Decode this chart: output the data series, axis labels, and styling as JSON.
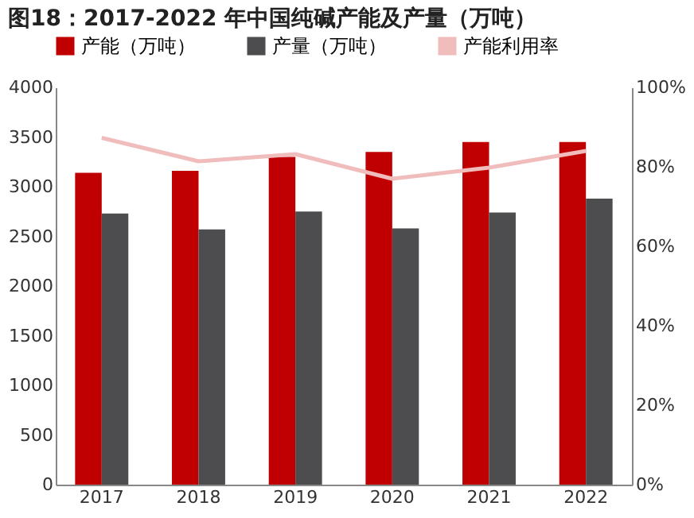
{
  "chart_data": {
    "type": "bar",
    "title": "图18：2017-2022 年中国纯碱产能及产量（万吨）",
    "categories": [
      "2017",
      "2018",
      "2019",
      "2020",
      "2021",
      "2022"
    ],
    "series": [
      {
        "name": "产能（万吨）",
        "color": "#c00000",
        "values": [
          3140,
          3160,
          3300,
          3350,
          3450,
          3450
        ]
      },
      {
        "name": "产量（万吨）",
        "color": "#4d4d4f",
        "values": [
          2730,
          2570,
          2750,
          2580,
          2740,
          2880
        ]
      },
      {
        "name": "产能利用率",
        "type": "line",
        "axis": "y2",
        "color": "#f0bcbc",
        "values": [
          87.3,
          81.4,
          83.2,
          77.0,
          79.8,
          84.0
        ]
      }
    ],
    "ylim": [
      0,
      4000
    ],
    "yticks": [
      0,
      500,
      1000,
      1500,
      2000,
      2500,
      3000,
      3500,
      4000
    ],
    "y2lim": [
      0,
      100
    ],
    "y2ticks": [
      {
        "value": 0,
        "label": "0%"
      },
      {
        "value": 20,
        "label": "20%"
      },
      {
        "value": 40,
        "label": "40%"
      },
      {
        "value": 60,
        "label": "60%"
      },
      {
        "value": 80,
        "label": "80%"
      },
      {
        "value": 100,
        "label": "100%"
      }
    ],
    "grid": false,
    "legend": "top"
  }
}
